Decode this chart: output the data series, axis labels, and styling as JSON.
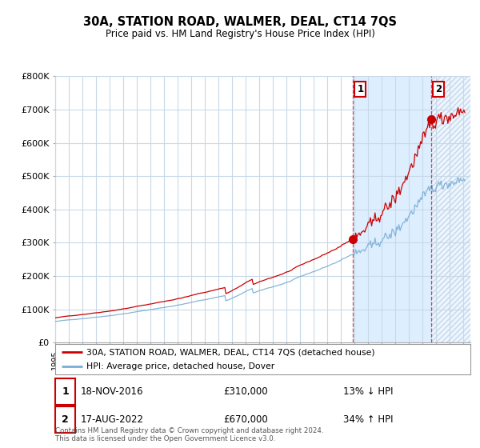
{
  "title": "30A, STATION ROAD, WALMER, DEAL, CT14 7QS",
  "subtitle": "Price paid vs. HM Land Registry's House Price Index (HPI)",
  "ylabel_ticks": [
    "£0",
    "£100K",
    "£200K",
    "£300K",
    "£400K",
    "£500K",
    "£600K",
    "£700K",
    "£800K"
  ],
  "ylim": [
    0,
    800000
  ],
  "xlim_start": 1995.0,
  "xlim_end": 2025.5,
  "sale1_date": 2016.88,
  "sale1_price": 310000,
  "sale1_label": "1",
  "sale1_date_str": "18-NOV-2016",
  "sale1_pct": "13% ↓ HPI",
  "sale2_date": 2022.63,
  "sale2_price": 670000,
  "sale2_label": "2",
  "sale2_date_str": "17-AUG-2022",
  "sale2_pct": "34% ↑ HPI",
  "hpi_color": "#7aadd4",
  "sale_color": "#cc0000",
  "grid_color": "#c8d8e8",
  "shade_color": "#ddeeff",
  "hatch_color": "#c8d8e8",
  "background_color": "#ffffff",
  "legend_label_red": "30A, STATION ROAD, WALMER, DEAL, CT14 7QS (detached house)",
  "legend_label_blue": "HPI: Average price, detached house, Dover",
  "footnote": "Contains HM Land Registry data © Crown copyright and database right 2024.\nThis data is licensed under the Open Government Licence v3.0."
}
